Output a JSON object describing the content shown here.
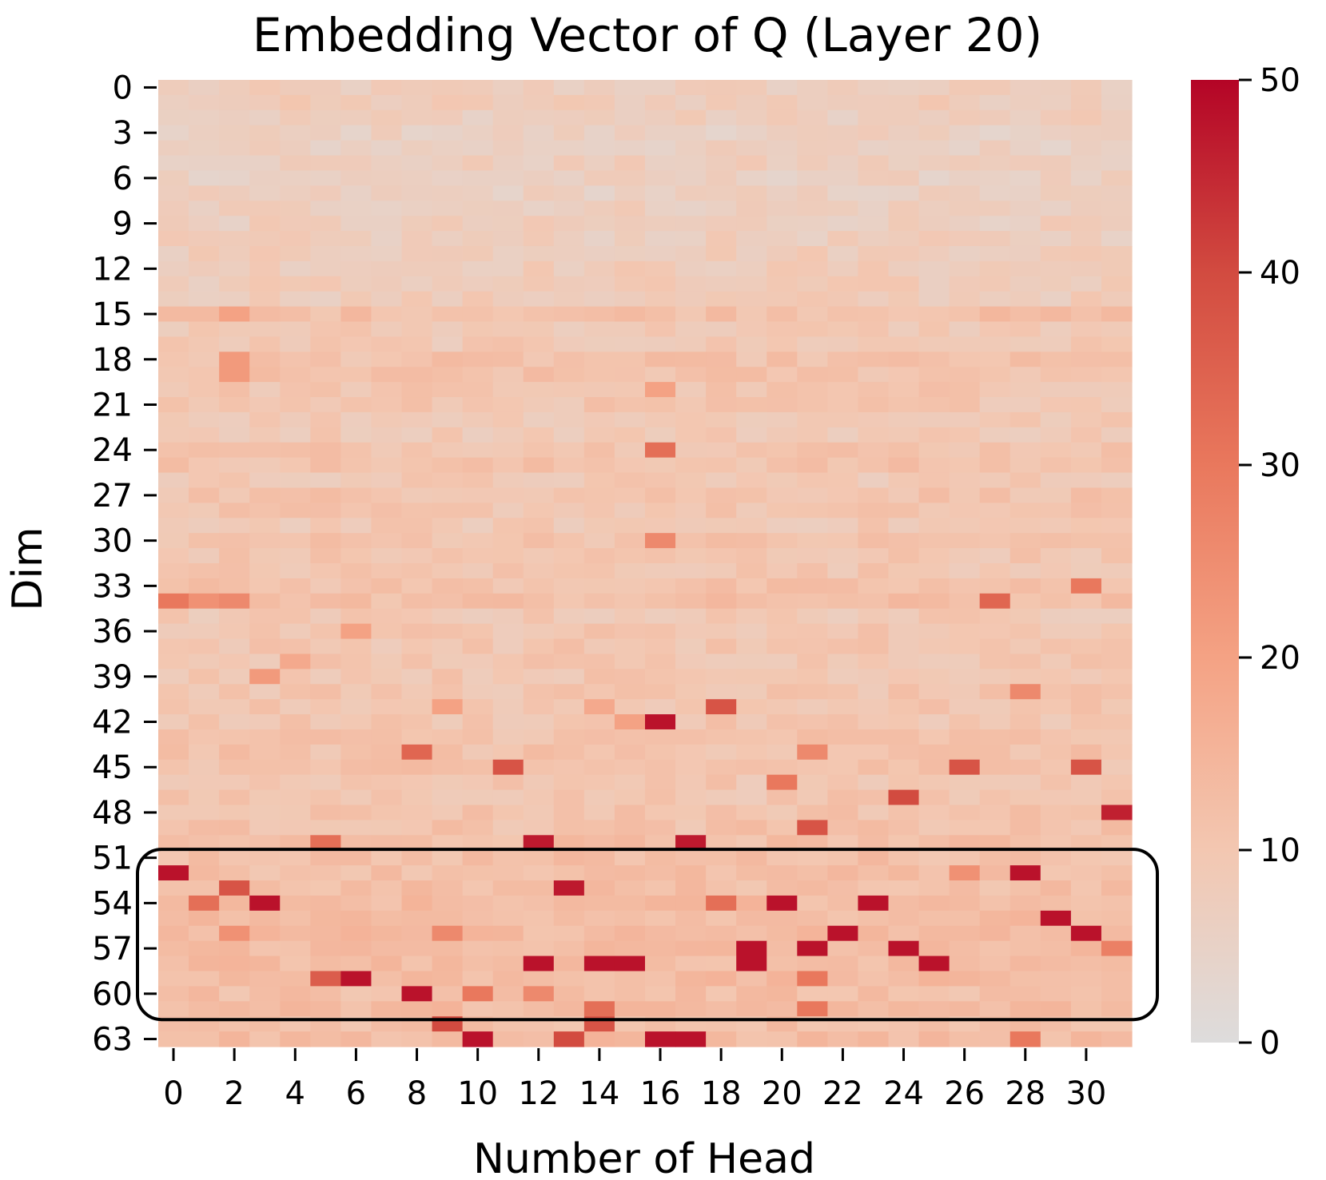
{
  "chart_data": {
    "type": "heatmap",
    "title": "Embedding Vector of Q (Layer 20)",
    "xlabel": "Number of Head",
    "ylabel": "Dim",
    "n_cols": 32,
    "n_rows": 64,
    "x_tick_labels": [
      "0",
      "2",
      "4",
      "6",
      "8",
      "10",
      "12",
      "14",
      "16",
      "18",
      "20",
      "22",
      "24",
      "26",
      "28",
      "30"
    ],
    "y_tick_labels": [
      "0",
      "3",
      "6",
      "9",
      "12",
      "15",
      "18",
      "21",
      "24",
      "27",
      "30",
      "33",
      "36",
      "39",
      "42",
      "45",
      "48",
      "51",
      "54",
      "57",
      "60",
      "63"
    ],
    "colorbar": {
      "min": 0,
      "max": 50,
      "ticks": [
        "0",
        "10",
        "20",
        "30",
        "40",
        "50"
      ],
      "cmap": "coolwarm-upper"
    },
    "base_profile": [
      7,
      8,
      7,
      6,
      6,
      7,
      6,
      6,
      7,
      7,
      7,
      8,
      8,
      8,
      8,
      12,
      9,
      9,
      11,
      11,
      10,
      10,
      9,
      9,
      11,
      11,
      9,
      11,
      10,
      9,
      11,
      10,
      10,
      11,
      12,
      9,
      10,
      10,
      10,
      10,
      10,
      10,
      10,
      11,
      11,
      11,
      10,
      10,
      11,
      11,
      12,
      12,
      12,
      12,
      13,
      13,
      13,
      13,
      13,
      13,
      12,
      13,
      12,
      13
    ],
    "highlight_box": {
      "rows": [
        52,
        61
      ],
      "label": ""
    },
    "notable_cells": [
      {
        "dim": 34,
        "head": 0,
        "value": 30
      },
      {
        "dim": 34,
        "head": 1,
        "value": 24
      },
      {
        "dim": 34,
        "head": 2,
        "value": 26
      },
      {
        "dim": 18,
        "head": 2,
        "value": 22
      },
      {
        "dim": 15,
        "head": 2,
        "value": 20
      },
      {
        "dim": 19,
        "head": 2,
        "value": 22
      },
      {
        "dim": 24,
        "head": 16,
        "value": 32
      },
      {
        "dim": 30,
        "head": 16,
        "value": 26
      },
      {
        "dim": 20,
        "head": 16,
        "value": 20
      },
      {
        "dim": 33,
        "head": 30,
        "value": 30
      },
      {
        "dim": 34,
        "head": 27,
        "value": 34
      },
      {
        "dim": 39,
        "head": 3,
        "value": 22
      },
      {
        "dim": 38,
        "head": 4,
        "value": 18
      },
      {
        "dim": 36,
        "head": 6,
        "value": 20
      },
      {
        "dim": 41,
        "head": 18,
        "value": 38
      },
      {
        "dim": 42,
        "head": 16,
        "value": 48
      },
      {
        "dim": 42,
        "head": 15,
        "value": 20
      },
      {
        "dim": 40,
        "head": 28,
        "value": 26
      },
      {
        "dim": 41,
        "head": 9,
        "value": 20
      },
      {
        "dim": 41,
        "head": 14,
        "value": 18
      },
      {
        "dim": 44,
        "head": 8,
        "value": 34
      },
      {
        "dim": 45,
        "head": 11,
        "value": 38
      },
      {
        "dim": 45,
        "head": 26,
        "value": 38
      },
      {
        "dim": 45,
        "head": 30,
        "value": 38
      },
      {
        "dim": 44,
        "head": 21,
        "value": 26
      },
      {
        "dim": 46,
        "head": 20,
        "value": 30
      },
      {
        "dim": 47,
        "head": 24,
        "value": 40
      },
      {
        "dim": 48,
        "head": 31,
        "value": 46
      },
      {
        "dim": 49,
        "head": 21,
        "value": 38
      },
      {
        "dim": 50,
        "head": 5,
        "value": 32
      },
      {
        "dim": 50,
        "head": 12,
        "value": 47
      },
      {
        "dim": 50,
        "head": 17,
        "value": 47
      },
      {
        "dim": 52,
        "head": 0,
        "value": 48
      },
      {
        "dim": 52,
        "head": 28,
        "value": 48
      },
      {
        "dim": 52,
        "head": 26,
        "value": 24
      },
      {
        "dim": 53,
        "head": 2,
        "value": 38
      },
      {
        "dim": 53,
        "head": 13,
        "value": 47
      },
      {
        "dim": 54,
        "head": 1,
        "value": 32
      },
      {
        "dim": 54,
        "head": 3,
        "value": 48
      },
      {
        "dim": 54,
        "head": 18,
        "value": 32
      },
      {
        "dim": 54,
        "head": 20,
        "value": 48
      },
      {
        "dim": 54,
        "head": 23,
        "value": 48
      },
      {
        "dim": 55,
        "head": 29,
        "value": 48
      },
      {
        "dim": 56,
        "head": 22,
        "value": 48
      },
      {
        "dim": 56,
        "head": 30,
        "value": 48
      },
      {
        "dim": 56,
        "head": 2,
        "value": 24
      },
      {
        "dim": 56,
        "head": 9,
        "value": 26
      },
      {
        "dim": 57,
        "head": 19,
        "value": 48
      },
      {
        "dim": 57,
        "head": 21,
        "value": 48
      },
      {
        "dim": 57,
        "head": 24,
        "value": 48
      },
      {
        "dim": 57,
        "head": 31,
        "value": 28
      },
      {
        "dim": 58,
        "head": 12,
        "value": 48
      },
      {
        "dim": 58,
        "head": 14,
        "value": 48
      },
      {
        "dim": 58,
        "head": 15,
        "value": 48
      },
      {
        "dim": 58,
        "head": 19,
        "value": 48
      },
      {
        "dim": 58,
        "head": 25,
        "value": 48
      },
      {
        "dim": 59,
        "head": 5,
        "value": 36
      },
      {
        "dim": 59,
        "head": 6,
        "value": 48
      },
      {
        "dim": 59,
        "head": 21,
        "value": 30
      },
      {
        "dim": 60,
        "head": 8,
        "value": 48
      },
      {
        "dim": 60,
        "head": 10,
        "value": 30
      },
      {
        "dim": 60,
        "head": 12,
        "value": 26
      },
      {
        "dim": 61,
        "head": 14,
        "value": 32
      },
      {
        "dim": 61,
        "head": 21,
        "value": 30
      },
      {
        "dim": 62,
        "head": 9,
        "value": 40
      },
      {
        "dim": 62,
        "head": 14,
        "value": 38
      },
      {
        "dim": 63,
        "head": 10,
        "value": 48
      },
      {
        "dim": 63,
        "head": 13,
        "value": 40
      },
      {
        "dim": 63,
        "head": 16,
        "value": 48
      },
      {
        "dim": 63,
        "head": 17,
        "value": 48
      },
      {
        "dim": 63,
        "head": 28,
        "value": 30
      }
    ]
  }
}
